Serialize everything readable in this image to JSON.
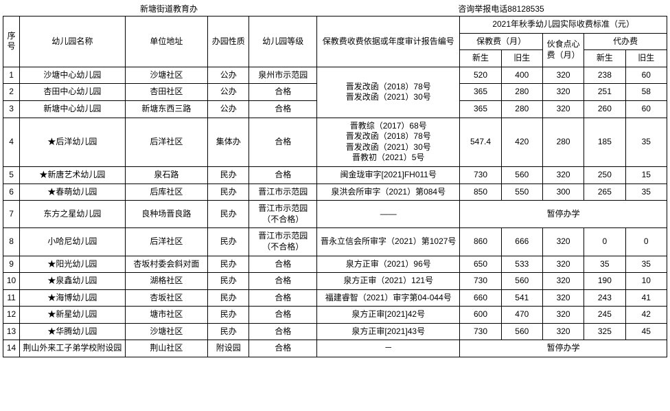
{
  "header": {
    "left": "新塘街道教育办",
    "right": "咨询举报电话88128535"
  },
  "columns": {
    "idx": "序号",
    "name": "幼儿园名称",
    "addr": "单位地址",
    "nature": "办园性质",
    "level": "幼儿园等级",
    "basis": "保教费收费依据或年度审计报告编号",
    "fee_group": "2021年秋季幼儿园实际收费标准（元）",
    "baojiao": "保教费（月）",
    "huoshi": "伙食点心费（月）",
    "daiban": "代办费",
    "new": "新生",
    "old": "旧生"
  },
  "basis_group1": "晋发改函（2018）78号\n晋发改函（2021）30号",
  "basis_row4": "晋教综（2017）68号\n晋发改函（2018）78号\n晋发改函（2021）30号\n晋教初（2021）5号",
  "suspend": "暂停办学",
  "dash": "——",
  "dash2": "－",
  "rows": [
    {
      "idx": "1",
      "name": "沙塘中心幼儿园",
      "addr": "沙塘社区",
      "nature": "公办",
      "level": "泉州市示范园",
      "bj_new": "520",
      "bj_old": "400",
      "hs": "320",
      "db_new": "238",
      "db_old": "60"
    },
    {
      "idx": "2",
      "name": "杏田中心幼儿园",
      "addr": "杏田社区",
      "nature": "公办",
      "level": "合格",
      "bj_new": "365",
      "bj_old": "280",
      "hs": "320",
      "db_new": "251",
      "db_old": "58"
    },
    {
      "idx": "3",
      "name": "新塘中心幼儿园",
      "addr": "新塘东西三路",
      "nature": "公办",
      "level": "合格",
      "bj_new": "365",
      "bj_old": "280",
      "hs": "320",
      "db_new": "260",
      "db_old": "60"
    },
    {
      "idx": "4",
      "name": "★后洋幼儿园",
      "addr": "后洋社区",
      "nature": "集体办",
      "level": "合格",
      "bj_new": "547.4",
      "bj_old": "420",
      "hs": "280",
      "db_new": "185",
      "db_old": "35"
    },
    {
      "idx": "5",
      "name": "★新唐艺术幼儿园",
      "addr": "泉石路",
      "nature": "民办",
      "level": "合格",
      "basis": "闽金珑审字[2021]FH011号",
      "bj_new": "730",
      "bj_old": "560",
      "hs": "320",
      "db_new": "250",
      "db_old": "15"
    },
    {
      "idx": "6",
      "name": "★春萌幼儿园",
      "addr": "后库社区",
      "nature": "民办",
      "level": "晋江市示范园",
      "basis": "泉洪会所审字（2021）第084号",
      "bj_new": "850",
      "bj_old": "550",
      "hs": "300",
      "db_new": "265",
      "db_old": "35"
    },
    {
      "idx": "7",
      "name": "东方之星幼儿园",
      "addr": "良种场晋良路",
      "nature": "民办",
      "level": "晋江市示范园（不合格）"
    },
    {
      "idx": "8",
      "name": "小哈尼幼儿园",
      "addr": "后洋社区",
      "nature": "民办",
      "level": "晋江市示范园（不合格）",
      "basis": "晋永立信会所审字（2021）第1027号",
      "bj_new": "860",
      "bj_old": "666",
      "hs": "320",
      "db_new": "0",
      "db_old": "0"
    },
    {
      "idx": "9",
      "name": "★阳光幼儿园",
      "addr": "杏坂村委会斜对面",
      "nature": "民办",
      "level": "合格",
      "basis": "泉方正审（2021）96号",
      "bj_new": "650",
      "bj_old": "533",
      "hs": "320",
      "db_new": "35",
      "db_old": "35"
    },
    {
      "idx": "10",
      "name": "★泉鑫幼儿园",
      "addr": "湖格社区",
      "nature": "民办",
      "level": "合格",
      "basis": "泉方正审（2021）121号",
      "bj_new": "730",
      "bj_old": "560",
      "hs": "320",
      "db_new": "190",
      "db_old": "10"
    },
    {
      "idx": "11",
      "name": "★海博幼儿园",
      "addr": "杏坂社区",
      "nature": "民办",
      "level": "合格",
      "basis": "福建睿智（2021）审字第04-044号",
      "bj_new": "660",
      "bj_old": "541",
      "hs": "320",
      "db_new": "243",
      "db_old": "41"
    },
    {
      "idx": "12",
      "name": "★新星幼儿园",
      "addr": "塘市社区",
      "nature": "民办",
      "level": "合格",
      "basis": "泉方正审[2021]42号",
      "bj_new": "600",
      "bj_old": "470",
      "hs": "320",
      "db_new": "245",
      "db_old": "42"
    },
    {
      "idx": "13",
      "name": "★华腾幼儿园",
      "addr": "沙塘社区",
      "nature": "民办",
      "level": "合格",
      "basis": "泉方正审[2021]43号",
      "bj_new": "730",
      "bj_old": "560",
      "hs": "320",
      "db_new": "325",
      "db_old": "45"
    },
    {
      "idx": "14",
      "name": "荆山外来工子弟学校附设园",
      "addr": "荆山社区",
      "nature": "附设园",
      "level": "合格"
    }
  ]
}
